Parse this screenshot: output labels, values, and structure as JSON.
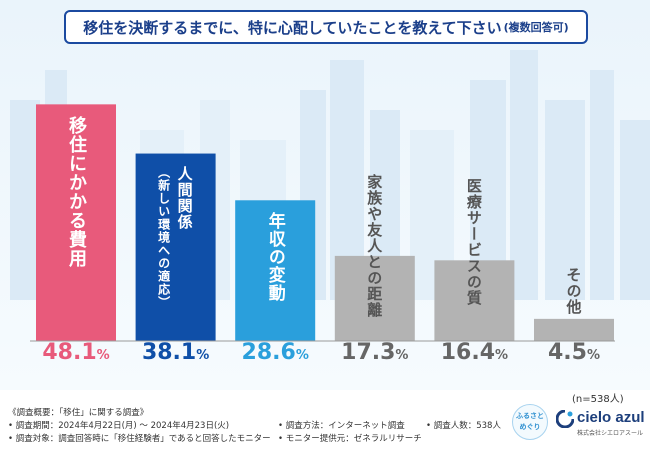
{
  "header": {
    "title": "移住を決断するまでに、特に心配していたことを教えて下さい",
    "subtitle": "(複数回答可)"
  },
  "chart_data": {
    "type": "bar",
    "title": "移住を決断するまでに、特に心配していたことを教えて下さい(複数回答可)",
    "categories": [
      "移住にかかる費用",
      "人間関係（新しい環境への適応）",
      "年収の変動",
      "家族や友人との距離",
      "医療サービスの質",
      "その他"
    ],
    "label_lines": [
      [
        "移住にかかる費用"
      ],
      [
        "人間関係",
        "（新しい環境への適応）"
      ],
      [
        "年収の変動"
      ],
      [
        "家族や友人との距離"
      ],
      [
        "医療サービスの質"
      ],
      [
        "その他"
      ]
    ],
    "values": [
      48.1,
      38.1,
      28.6,
      17.3,
      16.4,
      4.5
    ],
    "value_numbers": [
      "48.1",
      "38.1",
      "28.6",
      "17.3",
      "16.4",
      "4.5"
    ],
    "unit": "%",
    "bar_colors": [
      "#e85a7b",
      "#0f4fa8",
      "#2a9fdc",
      "#b3b3b3",
      "#b3b3b3",
      "#b3b3b3"
    ],
    "label_colors": [
      "#ffffff",
      "#ffffff",
      "#ffffff",
      "#555555",
      "#555555",
      "#555555"
    ],
    "value_colors": [
      "#e85a7b",
      "#0f4fa8",
      "#2a9fdc",
      "#666666",
      "#666666",
      "#666666"
    ],
    "ylim": [
      0,
      50
    ],
    "xlabel": "",
    "ylabel": "",
    "sample_note": "(n=538人)"
  },
  "footer": {
    "overview": "《調査概要：「移住」に関する調査》",
    "period": "• 調査期間：2024年4月22日(月) ～ 2024年4月23日(火)",
    "target": "• 調査対象：調査回答時に「移住経験者」であると回答したモニター",
    "method": "• 調査方法：インターネット調査",
    "provider": "• モニター提供元：ゼネラルリサーチ",
    "count": "• 調査人数：538人"
  },
  "logos": {
    "furusato": "ふるさと\nめぐり",
    "brand_name": "cielo azul",
    "brand_tag": "株式会社シエロアスール"
  }
}
